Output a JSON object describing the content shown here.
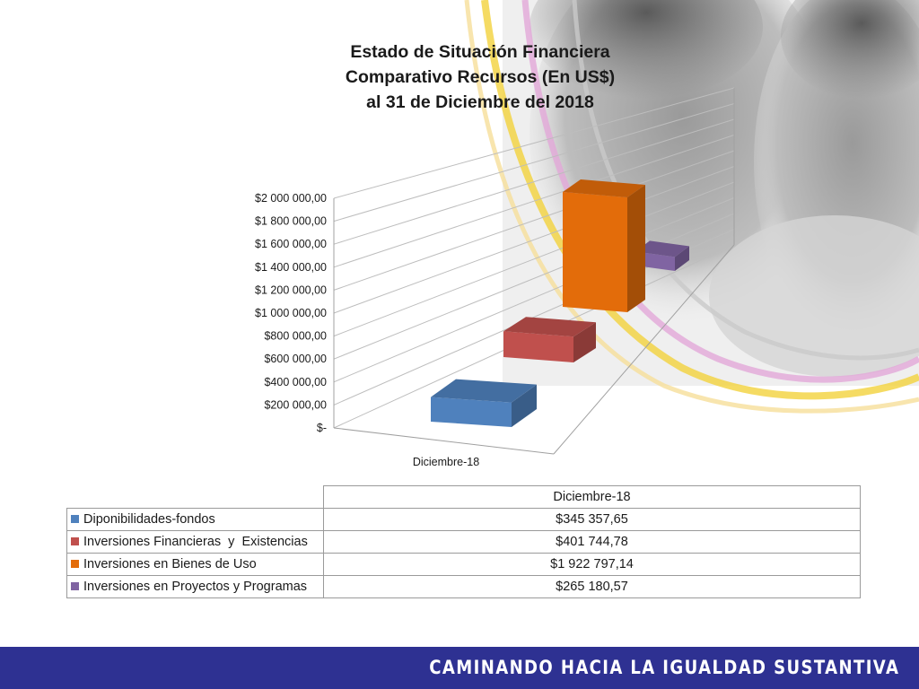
{
  "chart_data": {
    "type": "bar",
    "title_lines": [
      "Estado de Situación Financiera",
      "Comparativo Recursos (En US$)",
      "al 31 de Diciembre del 2018"
    ],
    "categories": [
      "Diciembre-18"
    ],
    "series": [
      {
        "name": "Diponibilidades-fondos",
        "values": [
          345357.65
        ],
        "display": "$345 357,65",
        "color": "#4f81bd"
      },
      {
        "name": "Inversiones Financieras  y  Existencias",
        "values": [
          401744.78
        ],
        "display": "$401 744,78",
        "color": "#c0504d"
      },
      {
        "name": "Inversiones en Bienes de Uso",
        "values": [
          1922797.14
        ],
        "display": "$1 922 797,14",
        "color": "#e36c0a"
      },
      {
        "name": "Inversiones en Proyectos y Programas",
        "values": [
          265180.57
        ],
        "display": "$265 180,57",
        "color": "#8064a2"
      }
    ],
    "yticks": [
      0,
      200000,
      400000,
      600000,
      800000,
      1000000,
      1200000,
      1400000,
      1600000,
      1800000,
      2000000
    ],
    "ytick_labels": [
      "$-",
      "$200 000,00",
      "$400 000,00",
      "$600 000,00",
      "$800 000,00",
      "$1 000 000,00",
      "$1 200 000,00",
      "$1 400 000,00",
      "$1 600 000,00",
      "$1 800 000,00",
      "$2 000 000,00"
    ],
    "ylim": [
      0,
      2000000
    ],
    "grid": true,
    "style": "3d-column",
    "legend": "data-table-below"
  },
  "table": {
    "column_header": "Diciembre-18"
  },
  "footer": {
    "text": "CAMINANDO HACIA LA IGUALDAD SUSTANTIVA",
    "color": "#2e3192"
  }
}
